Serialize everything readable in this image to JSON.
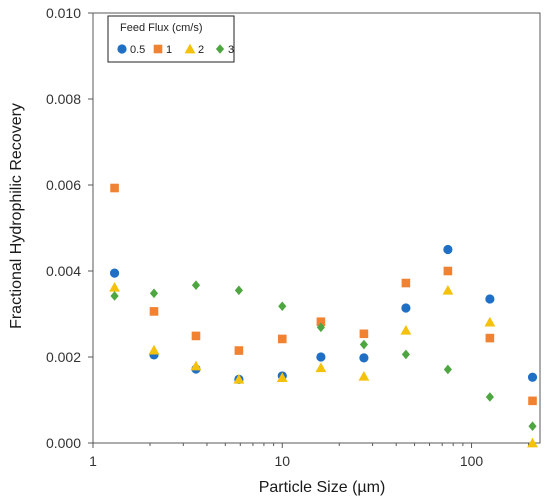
{
  "chart_data": {
    "type": "scatter",
    "title": "",
    "xlabel": "Particle Size (µm)",
    "ylabel": "Fractional Hydrophilic Recovery",
    "x_scale": "log",
    "xlim": [
      1,
      230
    ],
    "ylim": [
      0,
      0.01
    ],
    "x_ticks": [
      1,
      10,
      100
    ],
    "x_tick_labels": [
      "1",
      "10",
      "100"
    ],
    "y_ticks": [
      0,
      0.002,
      0.004,
      0.006,
      0.008,
      0.01
    ],
    "y_tick_labels": [
      "0.000",
      "0.002",
      "0.004",
      "0.006",
      "0.008",
      "0.010"
    ],
    "grid": false,
    "legend": {
      "title": "Feed Flux (cm/s)",
      "placement": "top-left"
    },
    "x": [
      1.3,
      2.1,
      3.5,
      5.9,
      10,
      16,
      27,
      45,
      75,
      125,
      210
    ],
    "series": [
      {
        "name": "0.5",
        "marker": "circle",
        "color": "#1f6fc4",
        "values": [
          0.00395,
          0.00205,
          0.00172,
          0.00148,
          0.00156,
          0.002,
          0.00198,
          0.00314,
          0.0045,
          0.00335,
          0.00153
        ]
      },
      {
        "name": "1",
        "marker": "square",
        "color": "#f08232",
        "values": [
          0.00593,
          0.00306,
          0.00249,
          0.00215,
          0.00242,
          0.00282,
          0.00254,
          0.00372,
          0.004,
          0.00244,
          0.00098
        ]
      },
      {
        "name": "2",
        "marker": "triangle",
        "color": "#f4c20d",
        "values": [
          0.00362,
          0.00216,
          0.00179,
          0.00148,
          0.00152,
          0.00175,
          0.00155,
          0.00262,
          0.00355,
          0.00281,
          0.0
        ]
      },
      {
        "name": "3",
        "marker": "diamond",
        "color": "#4ea640",
        "values": [
          0.00342,
          0.00348,
          0.00367,
          0.00355,
          0.00318,
          0.00269,
          0.00229,
          0.00206,
          0.00171,
          0.00107,
          0.00039
        ]
      }
    ]
  }
}
